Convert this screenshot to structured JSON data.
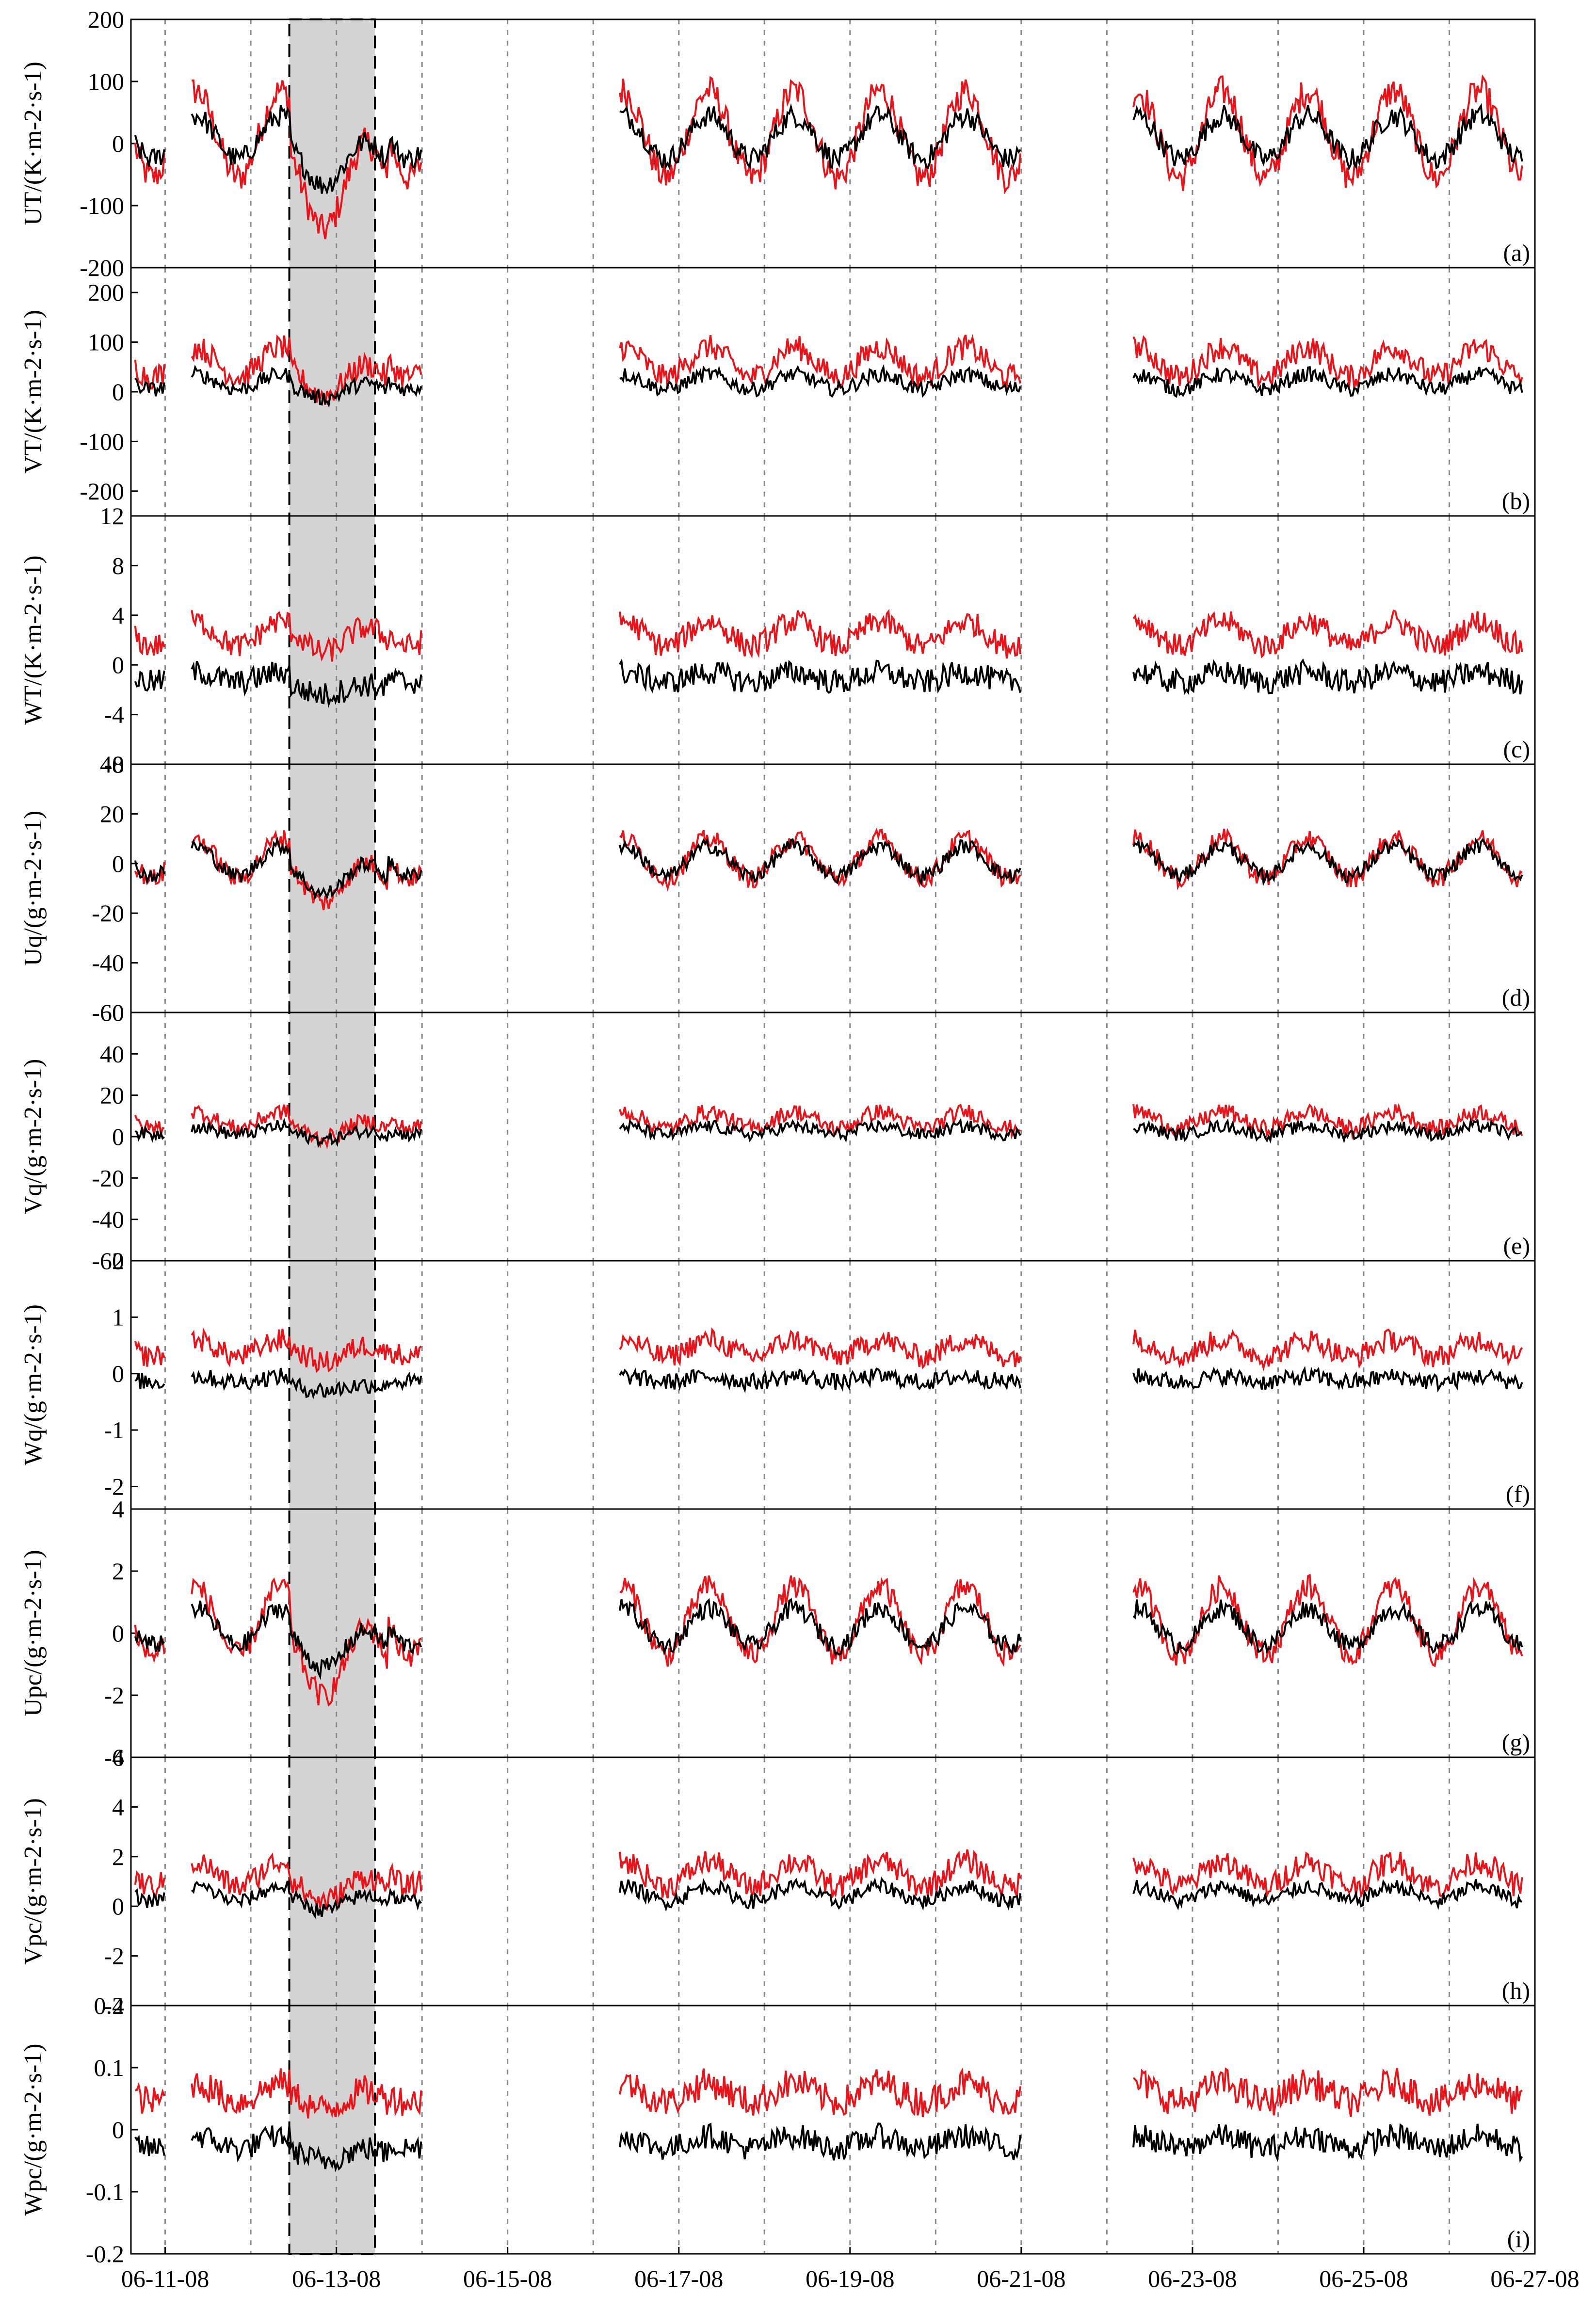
{
  "chart_data": {
    "type": "line",
    "x_ticks": [
      "06-11-08",
      "06-13-08",
      "06-15-08",
      "06-17-08",
      "06-19-08",
      "06-21-08",
      "06-23-08",
      "06-25-08",
      "06-27-08"
    ],
    "x_range_days": [
      10.6,
      27.0
    ],
    "dotted_guides_days": [
      11.0,
      12.0,
      13.0,
      14.0,
      15.0,
      16.0,
      17.0,
      18.0,
      19.0,
      20.0,
      21.0,
      22.0,
      23.0,
      24.0,
      25.0,
      26.0,
      27.0
    ],
    "data_gaps_days": [
      [
        11.0,
        11.3
      ],
      [
        14.0,
        16.3
      ],
      [
        21.0,
        22.3
      ]
    ],
    "highlight_days": [
      12.45,
      13.45
    ],
    "colors": {
      "series_a": "#000000",
      "series_b": "#e8141a",
      "highlight": "#d3d3d3",
      "guide": "#888888"
    },
    "panels": [
      {
        "id": "a",
        "tag": "(a)",
        "ylabel": "UT/(K·m-2·s-1)",
        "ylim": [
          -200,
          200
        ],
        "yticks": [
          "200",
          "100",
          "0",
          "-100",
          "-200"
        ],
        "black": {
          "base": 10,
          "diurnal": 35,
          "noise": 18
        },
        "red": {
          "base": 15,
          "diurnal": 70,
          "noise": 25
        }
      },
      {
        "id": "b",
        "tag": "(b)",
        "ylabel": "VT/(K·m-2·s-1)",
        "ylim": [
          -250,
          250
        ],
        "yticks": [
          "200",
          "100",
          "0",
          "-100",
          "-200"
        ],
        "black": {
          "base": 20,
          "diurnal": 15,
          "noise": 15
        },
        "red": {
          "base": 60,
          "diurnal": 30,
          "noise": 25
        }
      },
      {
        "id": "c",
        "tag": "(c)",
        "ylabel": "WT/(K·m-2·s-1)",
        "ylim": [
          -8,
          12
        ],
        "yticks": [
          "12",
          "8",
          "4",
          "0",
          "-4",
          "-8"
        ],
        "black": {
          "base": -1,
          "diurnal": 0.4,
          "noise": 1.0
        },
        "red": {
          "base": 2.5,
          "diurnal": 1.0,
          "noise": 1.0
        }
      },
      {
        "id": "d",
        "tag": "(d)",
        "ylabel": "Uq/(g·m-2·s-1)",
        "ylim": [
          -60,
          40
        ],
        "yticks": [
          "40",
          "20",
          "0",
          "-20",
          "-40",
          "-60"
        ],
        "black": {
          "base": 1,
          "diurnal": 6,
          "noise": 3
        },
        "red": {
          "base": 2,
          "diurnal": 8,
          "noise": 4
        }
      },
      {
        "id": "e",
        "tag": "(e)",
        "ylabel": "Vq/(g·m-2·s-1)",
        "ylim": [
          -60,
          60
        ],
        "yticks": [
          "60",
          "40",
          "20",
          "0",
          "-20",
          "-40",
          "-60"
        ],
        "black": {
          "base": 3,
          "diurnal": 2,
          "noise": 3
        },
        "red": {
          "base": 8,
          "diurnal": 4,
          "noise": 4
        }
      },
      {
        "id": "f",
        "tag": "(f)",
        "ylabel": "Wq/(g·m-2·s-1)",
        "ylim": [
          -2.4,
          2.0
        ],
        "yticks": [
          "2",
          "1",
          "0",
          "-1",
          "-2"
        ],
        "black": {
          "base": -0.1,
          "diurnal": 0.05,
          "noise": 0.15
        },
        "red": {
          "base": 0.45,
          "diurnal": 0.15,
          "noise": 0.2
        }
      },
      {
        "id": "g",
        "tag": "(g)",
        "ylabel": "Upc/(g·m-2·s-1)",
        "ylim": [
          -4,
          4
        ],
        "yticks": [
          "4",
          "2",
          "0",
          "-2",
          "-4"
        ],
        "black": {
          "base": 0.2,
          "diurnal": 0.6,
          "noise": 0.3
        },
        "red": {
          "base": 0.4,
          "diurnal": 1.1,
          "noise": 0.4
        }
      },
      {
        "id": "h",
        "tag": "(h)",
        "ylabel": "Vpc/(g·m-2·s-1)",
        "ylim": [
          -4,
          6
        ],
        "yticks": [
          "6",
          "4",
          "2",
          "0",
          "-2",
          "-4"
        ],
        "black": {
          "base": 0.5,
          "diurnal": 0.3,
          "noise": 0.3
        },
        "red": {
          "base": 1.3,
          "diurnal": 0.5,
          "noise": 0.5
        }
      },
      {
        "id": "i",
        "tag": "(i)",
        "ylabel": "Wpc/(g·m-2·s-1)",
        "ylim": [
          -0.2,
          0.2
        ],
        "yticks": [
          "0.2",
          "0.1",
          "0",
          "-0.1",
          "-0.2"
        ],
        "black": {
          "base": -0.02,
          "diurnal": 0.01,
          "noise": 0.02
        },
        "red": {
          "base": 0.06,
          "diurnal": 0.015,
          "noise": 0.025
        }
      }
    ]
  }
}
